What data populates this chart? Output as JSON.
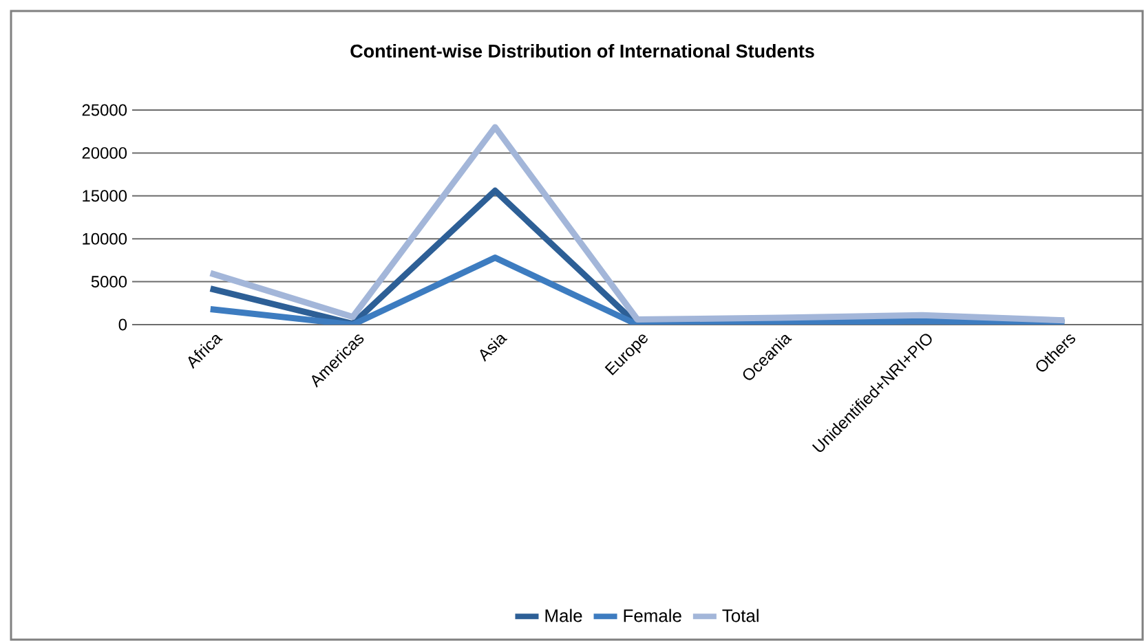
{
  "chart_data": {
    "type": "line",
    "title": "Continent-wise Distribution of International Students",
    "categories": [
      "Africa",
      "Americas",
      "Asia",
      "Europe",
      "Oceania",
      "Unidentified+NRI+PIO",
      "Others"
    ],
    "series": [
      {
        "name": "Male",
        "color": "#2d5f96",
        "values": [
          4200,
          100,
          15600,
          0,
          300,
          800,
          300
        ]
      },
      {
        "name": "Female",
        "color": "#3d7cc0",
        "values": [
          1800,
          0,
          7800,
          0,
          200,
          400,
          200
        ]
      },
      {
        "name": "Total",
        "color": "#a3b6d9",
        "values": [
          6000,
          900,
          23000,
          600,
          800,
          1100,
          500
        ]
      }
    ],
    "ylim": [
      0,
      25000
    ],
    "yticks": [
      0,
      5000,
      10000,
      15000,
      20000,
      25000
    ],
    "grid": "y",
    "legend": "bottom"
  }
}
